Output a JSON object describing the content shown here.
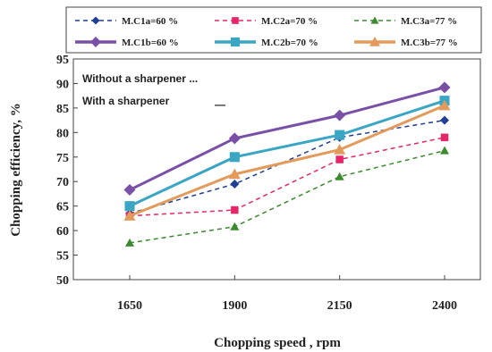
{
  "chart_data": {
    "type": "line",
    "title": "",
    "xlabel": "Chopping speed , rpm",
    "ylabel": "Chopping efficiency, %",
    "categories": [
      "1650",
      "1900",
      "2150",
      "2400"
    ],
    "ylim": [
      50,
      95
    ],
    "yticks": [
      50,
      55,
      60,
      65,
      70,
      75,
      80,
      85,
      90,
      95
    ],
    "grid": false,
    "legend_position": "top",
    "annotations": [
      "Without a sharpener ...",
      "With a sharpener",
      "—"
    ],
    "series": [
      {
        "name": "M.C1a=60 %",
        "values": [
          63.5,
          69.5,
          79.0,
          82.5
        ],
        "color": "#1f3f95",
        "dashed": true,
        "marker": "diamond"
      },
      {
        "name": "M.C2a=70 %",
        "values": [
          63.0,
          64.2,
          74.5,
          79.0
        ],
        "color": "#e8246a",
        "dashed": true,
        "marker": "square"
      },
      {
        "name": "M.C3a=77 %",
        "values": [
          57.5,
          60.8,
          71.0,
          76.3
        ],
        "color": "#3a8a2e",
        "dashed": true,
        "marker": "triangle"
      },
      {
        "name": "M.C1b=60 %",
        "values": [
          68.3,
          78.8,
          83.5,
          89.2
        ],
        "color": "#7a4fa6",
        "dashed": false,
        "marker": "diamond"
      },
      {
        "name": "M.C2b=70 %",
        "values": [
          65.0,
          75.0,
          79.5,
          86.5
        ],
        "color": "#3aa6c4",
        "dashed": false,
        "marker": "square"
      },
      {
        "name": "M.C3b=77 %",
        "values": [
          63.0,
          71.5,
          76.5,
          85.5
        ],
        "color": "#e39a5a",
        "dashed": false,
        "marker": "triangle"
      }
    ]
  }
}
